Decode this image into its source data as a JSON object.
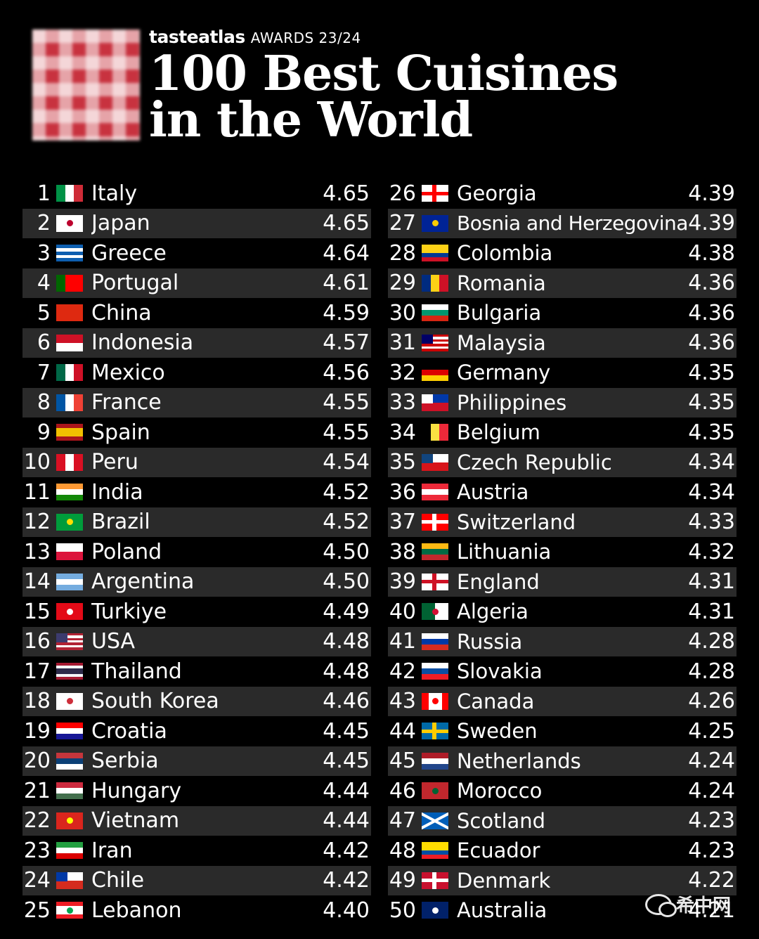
{
  "header": {
    "brand_name": "tasteatlas",
    "brand_award": "AWARDS 23/24",
    "title_line1": "100 Best Cuisines",
    "title_line2": "in the World"
  },
  "watermark": {
    "icon": "wechat-icon",
    "text": "希中网"
  },
  "left_column": [
    {
      "rank": "1",
      "country": "Italy",
      "score": "4.65",
      "flag": {
        "dir": "v",
        "colors": [
          "#009246",
          "#ffffff",
          "#ce2b37"
        ]
      }
    },
    {
      "rank": "2",
      "country": "Japan",
      "score": "4.65",
      "flag": {
        "dir": "h",
        "colors": [
          "#ffffff"
        ],
        "dot": "#bc002d"
      }
    },
    {
      "rank": "3",
      "country": "Greece",
      "score": "4.64",
      "flag": {
        "dir": "h",
        "colors": [
          "#0d5eaf",
          "#ffffff",
          "#0d5eaf",
          "#ffffff",
          "#0d5eaf"
        ]
      }
    },
    {
      "rank": "4",
      "country": "Portugal",
      "score": "4.61",
      "flag": {
        "dir": "v",
        "colors": [
          "#006600",
          "#ff0000",
          "#ff0000"
        ]
      }
    },
    {
      "rank": "5",
      "country": "China",
      "score": "4.59",
      "flag": {
        "dir": "h",
        "colors": [
          "#de2910"
        ]
      }
    },
    {
      "rank": "6",
      "country": "Indonesia",
      "score": "4.57",
      "flag": {
        "dir": "h",
        "colors": [
          "#ce1126",
          "#ffffff"
        ]
      }
    },
    {
      "rank": "7",
      "country": "Mexico",
      "score": "4.56",
      "flag": {
        "dir": "v",
        "colors": [
          "#006847",
          "#ffffff",
          "#ce1126"
        ]
      }
    },
    {
      "rank": "8",
      "country": "France",
      "score": "4.55",
      "flag": {
        "dir": "v",
        "colors": [
          "#0055a4",
          "#ffffff",
          "#ef4135"
        ]
      }
    },
    {
      "rank": "9",
      "country": "Spain",
      "score": "4.55",
      "flag": {
        "dir": "h",
        "colors": [
          "#aa151b",
          "#f1bf00",
          "#f1bf00",
          "#aa151b"
        ]
      }
    },
    {
      "rank": "10",
      "country": "Peru",
      "score": "4.54",
      "flag": {
        "dir": "v",
        "colors": [
          "#d91023",
          "#ffffff",
          "#d91023"
        ]
      }
    },
    {
      "rank": "11",
      "country": "India",
      "score": "4.52",
      "flag": {
        "dir": "h",
        "colors": [
          "#ff9933",
          "#ffffff",
          "#138808"
        ]
      }
    },
    {
      "rank": "12",
      "country": "Brazil",
      "score": "4.52",
      "flag": {
        "dir": "h",
        "colors": [
          "#009c3b"
        ],
        "dot": "#ffdf00"
      }
    },
    {
      "rank": "13",
      "country": "Poland",
      "score": "4.50",
      "flag": {
        "dir": "h",
        "colors": [
          "#ffffff",
          "#dc143c"
        ]
      }
    },
    {
      "rank": "14",
      "country": "Argentina",
      "score": "4.50",
      "flag": {
        "dir": "h",
        "colors": [
          "#74acdf",
          "#ffffff",
          "#74acdf"
        ]
      }
    },
    {
      "rank": "15",
      "country": "Turkiye",
      "score": "4.49",
      "flag": {
        "dir": "h",
        "colors": [
          "#e30a17"
        ],
        "dot": "#ffffff"
      }
    },
    {
      "rank": "16",
      "country": "USA",
      "score": "4.48",
      "flag": {
        "dir": "h",
        "colors": [
          "#b22234",
          "#ffffff",
          "#b22234",
          "#ffffff",
          "#b22234",
          "#ffffff",
          "#b22234"
        ],
        "canton": "#3c3b6e"
      }
    },
    {
      "rank": "17",
      "country": "Thailand",
      "score": "4.48",
      "flag": {
        "dir": "h",
        "colors": [
          "#a51931",
          "#f4f5f8",
          "#2d2a4a",
          "#2d2a4a",
          "#f4f5f8",
          "#a51931"
        ]
      }
    },
    {
      "rank": "18",
      "country": "South Korea",
      "score": "4.46",
      "flag": {
        "dir": "h",
        "colors": [
          "#ffffff"
        ],
        "dot": "#cd2e3a"
      }
    },
    {
      "rank": "19",
      "country": "Croatia",
      "score": "4.45",
      "flag": {
        "dir": "h",
        "colors": [
          "#ff0000",
          "#ffffff",
          "#171796"
        ]
      }
    },
    {
      "rank": "20",
      "country": "Serbia",
      "score": "4.45",
      "flag": {
        "dir": "h",
        "colors": [
          "#c6363c",
          "#0c4076",
          "#ffffff"
        ]
      }
    },
    {
      "rank": "21",
      "country": "Hungary",
      "score": "4.44",
      "flag": {
        "dir": "h",
        "colors": [
          "#cd2a3e",
          "#ffffff",
          "#436f4d"
        ]
      }
    },
    {
      "rank": "22",
      "country": "Vietnam",
      "score": "4.44",
      "flag": {
        "dir": "h",
        "colors": [
          "#da251d"
        ],
        "dot": "#ffff00"
      }
    },
    {
      "rank": "23",
      "country": "Iran",
      "score": "4.42",
      "flag": {
        "dir": "h",
        "colors": [
          "#239f40",
          "#ffffff",
          "#da0000"
        ]
      }
    },
    {
      "rank": "24",
      "country": "Chile",
      "score": "4.42",
      "flag": {
        "dir": "h",
        "colors": [
          "#ffffff",
          "#d52b1e"
        ],
        "canton": "#0039a6"
      }
    },
    {
      "rank": "25",
      "country": "Lebanon",
      "score": "4.40",
      "flag": {
        "dir": "h",
        "colors": [
          "#ed1c24",
          "#ffffff",
          "#ffffff",
          "#ed1c24"
        ],
        "dot": "#00a651"
      }
    }
  ],
  "right_column": [
    {
      "rank": "26",
      "country": "Georgia",
      "score": "4.39",
      "flag": {
        "dir": "h",
        "colors": [
          "#ffffff"
        ],
        "cross": "#ff0000"
      }
    },
    {
      "rank": "27",
      "country": "Bosnia and Herzegovina",
      "score": "4.39",
      "flag": {
        "dir": "h",
        "colors": [
          "#002395"
        ],
        "dot": "#fecb00"
      }
    },
    {
      "rank": "28",
      "country": "Colombia",
      "score": "4.38",
      "flag": {
        "dir": "h",
        "colors": [
          "#fcd116",
          "#fcd116",
          "#003893",
          "#ce1126"
        ]
      }
    },
    {
      "rank": "29",
      "country": "Romania",
      "score": "4.36",
      "flag": {
        "dir": "v",
        "colors": [
          "#002b7f",
          "#fcd116",
          "#ce1126"
        ]
      }
    },
    {
      "rank": "30",
      "country": "Bulgaria",
      "score": "4.36",
      "flag": {
        "dir": "h",
        "colors": [
          "#ffffff",
          "#00966e",
          "#d62612"
        ]
      }
    },
    {
      "rank": "31",
      "country": "Malaysia",
      "score": "4.36",
      "flag": {
        "dir": "h",
        "colors": [
          "#cc0001",
          "#ffffff",
          "#cc0001",
          "#ffffff",
          "#cc0001",
          "#ffffff",
          "#cc0001"
        ],
        "canton": "#010066"
      }
    },
    {
      "rank": "32",
      "country": "Germany",
      "score": "4.35",
      "flag": {
        "dir": "h",
        "colors": [
          "#000000",
          "#dd0000",
          "#ffce00"
        ]
      }
    },
    {
      "rank": "33",
      "country": "Philippines",
      "score": "4.35",
      "flag": {
        "dir": "h",
        "colors": [
          "#0038a8",
          "#ce1126"
        ],
        "canton": "#ffffff"
      }
    },
    {
      "rank": "34",
      "country": "Belgium",
      "score": "4.35",
      "flag": {
        "dir": "v",
        "colors": [
          "#000000",
          "#fae042",
          "#ed2939"
        ]
      }
    },
    {
      "rank": "35",
      "country": "Czech Republic",
      "score": "4.34",
      "flag": {
        "dir": "h",
        "colors": [
          "#ffffff",
          "#d7141a"
        ],
        "canton": "#11457e"
      }
    },
    {
      "rank": "36",
      "country": "Austria",
      "score": "4.34",
      "flag": {
        "dir": "h",
        "colors": [
          "#ed2939",
          "#ffffff",
          "#ed2939"
        ]
      }
    },
    {
      "rank": "37",
      "country": "Switzerland",
      "score": "4.33",
      "flag": {
        "dir": "h",
        "colors": [
          "#ff0000"
        ],
        "cross": "#ffffff"
      }
    },
    {
      "rank": "38",
      "country": "Lithuania",
      "score": "4.32",
      "flag": {
        "dir": "h",
        "colors": [
          "#fdb913",
          "#006a44",
          "#c1272d"
        ]
      }
    },
    {
      "rank": "39",
      "country": "England",
      "score": "4.31",
      "flag": {
        "dir": "h",
        "colors": [
          "#ffffff"
        ],
        "cross": "#ce1124"
      }
    },
    {
      "rank": "40",
      "country": "Algeria",
      "score": "4.31",
      "flag": {
        "dir": "v",
        "colors": [
          "#006233",
          "#ffffff"
        ],
        "dot": "#d21034"
      }
    },
    {
      "rank": "41",
      "country": "Russia",
      "score": "4.28",
      "flag": {
        "dir": "h",
        "colors": [
          "#ffffff",
          "#0039a6",
          "#d52b1e"
        ]
      }
    },
    {
      "rank": "42",
      "country": "Slovakia",
      "score": "4.28",
      "flag": {
        "dir": "h",
        "colors": [
          "#ffffff",
          "#0b4ea2",
          "#ee1c25"
        ]
      }
    },
    {
      "rank": "43",
      "country": "Canada",
      "score": "4.26",
      "flag": {
        "dir": "v",
        "colors": [
          "#ff0000",
          "#ffffff",
          "#ffffff",
          "#ff0000"
        ],
        "dot": "#ff0000"
      }
    },
    {
      "rank": "44",
      "country": "Sweden",
      "score": "4.25",
      "flag": {
        "dir": "h",
        "colors": [
          "#006aa7"
        ],
        "cross": "#fecc00"
      }
    },
    {
      "rank": "45",
      "country": "Netherlands",
      "score": "4.24",
      "flag": {
        "dir": "h",
        "colors": [
          "#ae1c28",
          "#ffffff",
          "#21468b"
        ]
      }
    },
    {
      "rank": "46",
      "country": "Morocco",
      "score": "4.24",
      "flag": {
        "dir": "h",
        "colors": [
          "#c1272d"
        ],
        "dot": "#006233"
      }
    },
    {
      "rank": "47",
      "country": "Scotland",
      "score": "4.23",
      "flag": {
        "dir": "h",
        "colors": [
          "#005eb8"
        ],
        "saltire": "#ffffff"
      }
    },
    {
      "rank": "48",
      "country": "Ecuador",
      "score": "4.23",
      "flag": {
        "dir": "h",
        "colors": [
          "#ffdd00",
          "#ffdd00",
          "#034ea2",
          "#ed1c24"
        ]
      }
    },
    {
      "rank": "49",
      "country": "Denmark",
      "score": "4.22",
      "flag": {
        "dir": "h",
        "colors": [
          "#c8102e"
        ],
        "cross": "#ffffff"
      }
    },
    {
      "rank": "50",
      "country": "Australia",
      "score": "4.21",
      "flag": {
        "dir": "h",
        "colors": [
          "#012169"
        ],
        "canton": "#012169",
        "dot": "#ffffff"
      }
    }
  ]
}
